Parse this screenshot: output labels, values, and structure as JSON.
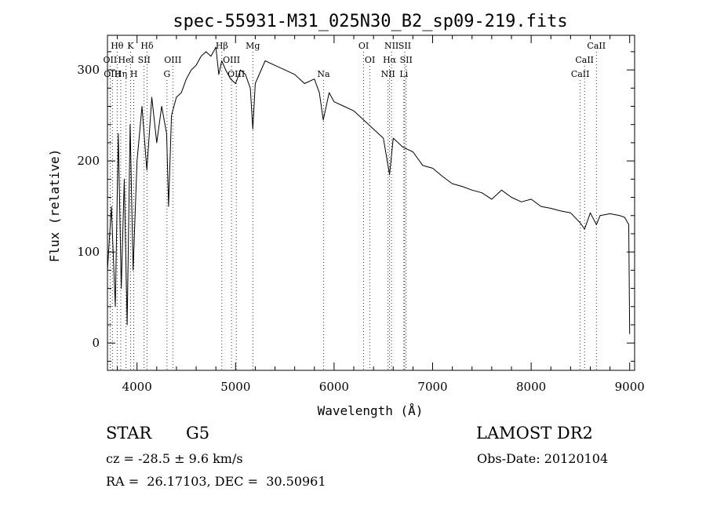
{
  "chart_data": {
    "type": "line",
    "title": "spec-55931-M31_025N30_B2_sp09-219.fits",
    "xlabel": "Wavelength (Å)",
    "ylabel": "Flux (relative)",
    "xlim": [
      3700,
      9050
    ],
    "ylim": [
      -30,
      338
    ],
    "xticks": [
      4000,
      5000,
      6000,
      7000,
      8000,
      9000
    ],
    "yticks": [
      0,
      100,
      200,
      300
    ],
    "x_minor_step": 200,
    "y_minor_step": 20,
    "grid": false,
    "series": [
      {
        "x": [
          3700,
          3740,
          3780,
          3810,
          3840,
          3870,
          3900,
          3930,
          3960,
          4000,
          4050,
          4100,
          4150,
          4200,
          4250,
          4300,
          4320,
          4350,
          4400,
          4450,
          4500,
          4550,
          4600,
          4650,
          4700,
          4750,
          4800,
          4830,
          4860,
          4900,
          4950,
          5000,
          5050,
          5100,
          5150,
          5175,
          5200,
          5300,
          5400,
          5500,
          5600,
          5700,
          5800,
          5850,
          5890,
          5950,
          6000,
          6100,
          6200,
          6300,
          6400,
          6500,
          6563,
          6600,
          6700,
          6800,
          6900,
          7000,
          7100,
          7200,
          7300,
          7400,
          7500,
          7600,
          7700,
          7800,
          7900,
          8000,
          8100,
          8200,
          8300,
          8400,
          8498,
          8542,
          8600,
          8662,
          8700,
          8800,
          8900,
          8950,
          8990,
          9000
        ],
        "y": [
          80,
          150,
          40,
          230,
          60,
          180,
          20,
          240,
          80,
          200,
          260,
          190,
          270,
          220,
          260,
          230,
          150,
          250,
          270,
          275,
          290,
          300,
          305,
          315,
          320,
          315,
          325,
          295,
          310,
          300,
          290,
          285,
          300,
          295,
          280,
          235,
          285,
          310,
          305,
          300,
          295,
          285,
          290,
          275,
          245,
          275,
          265,
          260,
          255,
          245,
          235,
          225,
          185,
          225,
          215,
          210,
          195,
          192,
          183,
          175,
          172,
          168,
          165,
          158,
          168,
          160,
          155,
          158,
          150,
          148,
          145,
          143,
          132,
          125,
          143,
          130,
          140,
          142,
          140,
          138,
          130,
          10
        ]
      }
    ],
    "lines_row1": [
      {
        "label": "Hθ",
        "x": 3798
      },
      {
        "label": "K",
        "x": 3934
      },
      {
        "label": "Hδ",
        "x": 4102
      },
      {
        "label": "Hβ",
        "x": 4861
      },
      {
        "label": "Mg",
        "x": 5175
      },
      {
        "label": "OI",
        "x": 6300
      },
      {
        "label": "NII",
        "x": 6583
      },
      {
        "label": "SII",
        "x": 6717
      },
      {
        "label": "CaII",
        "x": 8662
      }
    ],
    "lines_row2": [
      {
        "label": "OII",
        "x": 3727
      },
      {
        "label": "HeI",
        "x": 3889
      },
      {
        "label": "SII",
        "x": 4072
      },
      {
        "label": "OIII",
        "x": 4363
      },
      {
        "label": "OIII",
        "x": 4959
      },
      {
        "label": "OI",
        "x": 6364
      },
      {
        "label": "Hα",
        "x": 6563
      },
      {
        "label": "SII",
        "x": 6731
      },
      {
        "label": "CaII",
        "x": 8542
      }
    ],
    "lines_row3": [
      {
        "label": "OIII",
        "x": 3750
      },
      {
        "label": "Hη",
        "x": 3835
      },
      {
        "label": "H",
        "x": 3968
      },
      {
        "label": "G",
        "x": 4304
      },
      {
        "label": "OIII",
        "x": 5007
      },
      {
        "label": "Na",
        "x": 5893
      },
      {
        "label": "NII",
        "x": 6548
      },
      {
        "label": "Li",
        "x": 6708
      },
      {
        "label": "CaII",
        "x": 8498
      }
    ]
  },
  "info": {
    "object_type": "STAR",
    "subclass": "G5",
    "survey": "LAMOST DR2",
    "redshift_text": "cz = -28.5 ± 9.6 km/s",
    "obs_date_text": "Obs-Date: 20120104",
    "radec_text": "RA =  26.17103, DEC =  30.50961"
  }
}
